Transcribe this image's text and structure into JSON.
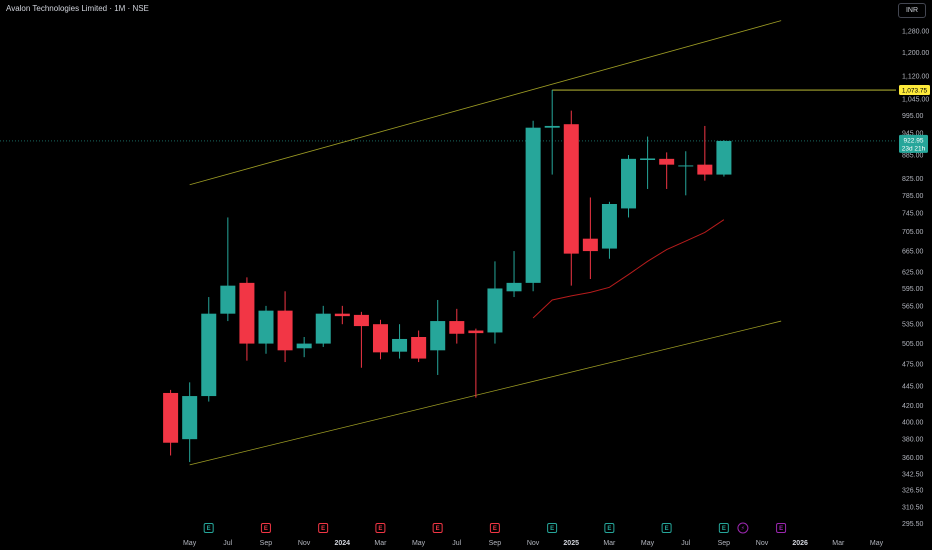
{
  "header": {
    "title": "Avalon Technologies Limited · 1M · NSE",
    "currency": "INR"
  },
  "colors": {
    "up": "#26a69a",
    "down": "#f23645",
    "channel": "#9e9d24",
    "resistance": "#d4d53b",
    "ma": "#b71c1c",
    "event_earnings_up": "#26a69a",
    "event_earnings_down": "#f23645",
    "event_dividend": "#9c27b0",
    "current_price_bg": "#26a69a",
    "resistance_label_bg": "#ffeb3b"
  },
  "chart_data": {
    "type": "candlestick",
    "y_scale": "log",
    "ylim": [
      280,
      1400
    ],
    "y_ticks": [
      "295.50",
      "310.50",
      "326.50",
      "342.50",
      "360.00",
      "380.00",
      "400.00",
      "420.00",
      "445.00",
      "475.00",
      "505.00",
      "535.00",
      "565.00",
      "595.00",
      "625.00",
      "665.00",
      "705.00",
      "745.00",
      "785.00",
      "825.00",
      "885.00",
      "945.00",
      "995.00",
      "1,045.00",
      "1,120.00",
      "1,200.00",
      "1,280.00"
    ],
    "x_ticks": [
      "May",
      "Jul",
      "Sep",
      "Nov",
      "2024",
      "Mar",
      "May",
      "Jul",
      "Sep",
      "Nov",
      "2025",
      "Mar",
      "May",
      "Jul",
      "Sep",
      "Nov",
      "2026",
      "Mar",
      "May"
    ],
    "x_tick_months": [
      0,
      2,
      4,
      6,
      8,
      10,
      12,
      14,
      16,
      18,
      20,
      22,
      24,
      26,
      28,
      30,
      32,
      34,
      36
    ],
    "candles": [
      {
        "m": 0,
        "o": 436,
        "h": 440,
        "l": 362,
        "c": 376
      },
      {
        "m": 1,
        "o": 380,
        "h": 450,
        "l": 355,
        "c": 432
      },
      {
        "m": 2,
        "o": 432,
        "h": 580,
        "l": 425,
        "c": 552
      },
      {
        "m": 3,
        "o": 552,
        "h": 735,
        "l": 540,
        "c": 600
      },
      {
        "m": 4,
        "o": 605,
        "h": 615,
        "l": 480,
        "c": 505
      },
      {
        "m": 5,
        "o": 505,
        "h": 565,
        "l": 490,
        "c": 557
      },
      {
        "m": 6,
        "o": 557,
        "h": 590,
        "l": 478,
        "c": 495
      },
      {
        "m": 7,
        "o": 498,
        "h": 515,
        "l": 485,
        "c": 505
      },
      {
        "m": 8,
        "o": 505,
        "h": 565,
        "l": 500,
        "c": 552
      },
      {
        "m": 9,
        "o": 552,
        "h": 565,
        "l": 535,
        "c": 548
      },
      {
        "m": 10,
        "o": 550,
        "h": 555,
        "l": 470,
        "c": 532
      },
      {
        "m": 11,
        "o": 535,
        "h": 542,
        "l": 482,
        "c": 492
      },
      {
        "m": 12,
        "o": 493,
        "h": 535,
        "l": 483,
        "c": 512
      },
      {
        "m": 13,
        "o": 515,
        "h": 525,
        "l": 478,
        "c": 483
      },
      {
        "m": 14,
        "o": 495,
        "h": 575,
        "l": 460,
        "c": 540
      },
      {
        "m": 15,
        "o": 540,
        "h": 560,
        "l": 505,
        "c": 520
      },
      {
        "m": 16,
        "o": 525,
        "h": 528,
        "l": 430,
        "c": 521
      },
      {
        "m": 17,
        "o": 522,
        "h": 645,
        "l": 505,
        "c": 595
      },
      {
        "m": 18,
        "o": 590,
        "h": 665,
        "l": 580,
        "c": 605
      },
      {
        "m": 19,
        "o": 605,
        "h": 980,
        "l": 590,
        "c": 960
      },
      {
        "m": 20,
        "o": 960,
        "h": 1073.75,
        "l": 835,
        "c": 965
      },
      {
        "m": 21,
        "o": 970,
        "h": 1010,
        "l": 600,
        "c": 660
      },
      {
        "m": 22,
        "o": 690,
        "h": 780,
        "l": 612,
        "c": 665
      },
      {
        "m": 23,
        "o": 670,
        "h": 770,
        "l": 650,
        "c": 765
      },
      {
        "m": 24,
        "o": 755,
        "h": 885,
        "l": 735,
        "c": 875
      },
      {
        "m": 25,
        "o": 872,
        "h": 935,
        "l": 800,
        "c": 876
      },
      {
        "m": 26,
        "o": 875,
        "h": 892,
        "l": 800,
        "c": 860
      },
      {
        "m": 27,
        "o": 858,
        "h": 895,
        "l": 785,
        "c": 858
      },
      {
        "m": 28,
        "o": 860,
        "h": 965,
        "l": 820,
        "c": 835
      },
      {
        "m": 29,
        "o": 835,
        "h": 925,
        "l": 830,
        "c": 922.95
      }
    ],
    "moving_average": {
      "points": [
        [
          19,
          545
        ],
        [
          20,
          575
        ],
        [
          21,
          582
        ],
        [
          22,
          588
        ],
        [
          23,
          597
        ],
        [
          24,
          620
        ],
        [
          25,
          645
        ],
        [
          26,
          668
        ],
        [
          27,
          685
        ],
        [
          28,
          703
        ],
        [
          29,
          730
        ]
      ]
    },
    "channel_upper": [
      [
        1,
        810
      ],
      [
        32,
        1320
      ]
    ],
    "channel_lower": [
      [
        1,
        352
      ],
      [
        32,
        540
      ]
    ],
    "resistance": {
      "value": 1073.75,
      "from_month": 20,
      "label": "1,073.75"
    },
    "current_price": {
      "value": 922.95,
      "label": "922.95",
      "countdown": "23d 21h"
    },
    "events": [
      {
        "m": 1,
        "type": "earnings_up",
        "label": "E"
      },
      {
        "m": 4,
        "type": "earnings_down",
        "label": "E"
      },
      {
        "m": 7,
        "type": "earnings_down",
        "label": "E"
      },
      {
        "m": 10,
        "type": "earnings_down",
        "label": "E"
      },
      {
        "m": 13,
        "type": "earnings_down",
        "label": "E"
      },
      {
        "m": 16,
        "type": "earnings_down",
        "label": "E"
      },
      {
        "m": 19,
        "type": "earnings_up",
        "label": "E"
      },
      {
        "m": 22,
        "type": "earnings_up",
        "label": "E"
      },
      {
        "m": 25,
        "type": "earnings_up",
        "label": "E"
      },
      {
        "m": 28,
        "type": "earnings_up",
        "label": "E"
      },
      {
        "m": 29,
        "type": "dividend",
        "label": "⚡"
      },
      {
        "m": 31,
        "type": "dividend",
        "label": "E"
      }
    ]
  }
}
